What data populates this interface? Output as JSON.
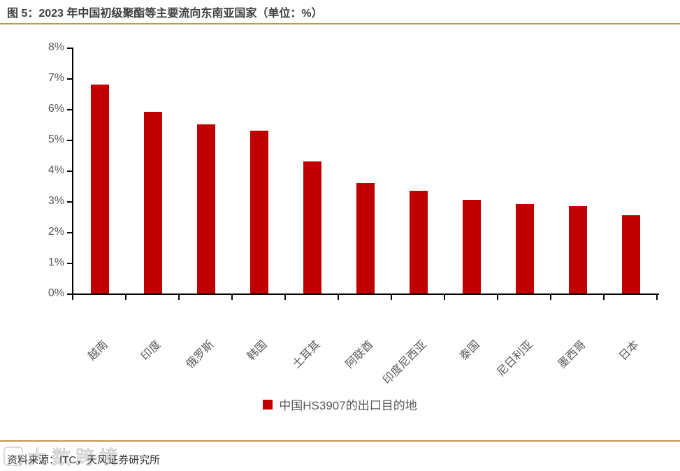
{
  "title": "图 5：2023 年中国初级聚酯等主要流向东南亚国家（单位：%）",
  "legend": {
    "label": "中国HS3907的出口目的地"
  },
  "footer": {
    "source": "资料来源：ITC，天风证券研究所"
  },
  "watermark": {
    "text": "大数跨境"
  },
  "colors": {
    "bar": "#C00000",
    "gold_rule": "#C4964E",
    "axis": "#000000",
    "axis_label": "#595959",
    "title_text": "#3F3F3F",
    "legend_text": "#595959",
    "footer_text": "#333333"
  },
  "chart_data": {
    "type": "bar",
    "title": "图 5：2023 年中国初级聚酯等主要流向东南亚国家（单位：%）",
    "categories": [
      "越南",
      "印度",
      "俄罗斯",
      "韩国",
      "土耳其",
      "阿联酋",
      "印度尼西亚",
      "泰国",
      "尼日利亚",
      "墨西哥",
      "日本"
    ],
    "values": [
      6.8,
      5.9,
      5.5,
      5.3,
      4.3,
      3.6,
      3.35,
      3.05,
      2.9,
      2.85,
      2.55
    ],
    "unit": "%",
    "xlabel": "",
    "ylabel": "",
    "ylim": [
      0,
      8
    ],
    "ytick_step": 1,
    "ytick_suffix": "%",
    "grid": false,
    "legend": [
      "中国HS3907的出口目的地"
    ],
    "legend_position": "bottom",
    "bar_color": "#C00000",
    "x_label_rotation_deg": 45
  }
}
